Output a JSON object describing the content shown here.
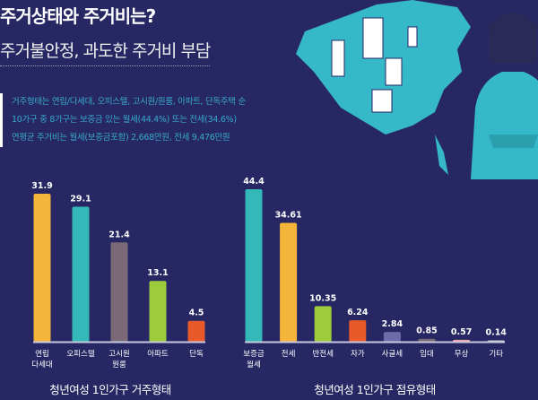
{
  "header": {
    "title": "주거상태와 주거비는?",
    "subtitle": "주거불안정, 과도한 주거비 부담",
    "description": [
      "거주형태는 연립/다세대, 오피스텔, 고시원/원룸, 아파트, 단독주택 순",
      "10가구 중 8가구는 보증금 있는 월세(44.4%) 또는 전세(34.6%)",
      "연평균 주거비는 월세(보증금포함) 2,668만원, 전세 9,476만원"
    ]
  },
  "chart_data": [
    {
      "type": "bar",
      "title": "청년여성 1인가구 거주형태",
      "categories": [
        "연립\n다세대",
        "오피스텔",
        "고시원\n원룸",
        "아파트",
        "단독"
      ],
      "values": [
        31.9,
        29.1,
        21.4,
        13.1,
        4.5
      ],
      "labels": [
        "31.9",
        "29.1",
        "21.4",
        "13.1",
        "4.5"
      ],
      "colors": [
        "#f5b43a",
        "#35b8b8",
        "#7a6a78",
        "#9ccb3b",
        "#e85a2a"
      ]
    },
    {
      "type": "bar",
      "title": "청년여성 1인가구 점유형태",
      "categories": [
        "보증금\n월세",
        "전세",
        "반전세",
        "자가",
        "사글세",
        "임대",
        "무상",
        "기타"
      ],
      "values": [
        44.4,
        34.61,
        10.35,
        6.24,
        2.84,
        0.85,
        0.57,
        0.14
      ],
      "labels": [
        "44.4",
        "34.61",
        "10.35",
        "6.24",
        "2.84",
        "0.85",
        "0.57",
        "0.14"
      ],
      "colors": [
        "#35b8b8",
        "#f5b43a",
        "#9ccb3b",
        "#e85a2a",
        "#6f6aa8",
        "#7a6a78",
        "#f4a6a6",
        "#cccccc"
      ]
    }
  ]
}
